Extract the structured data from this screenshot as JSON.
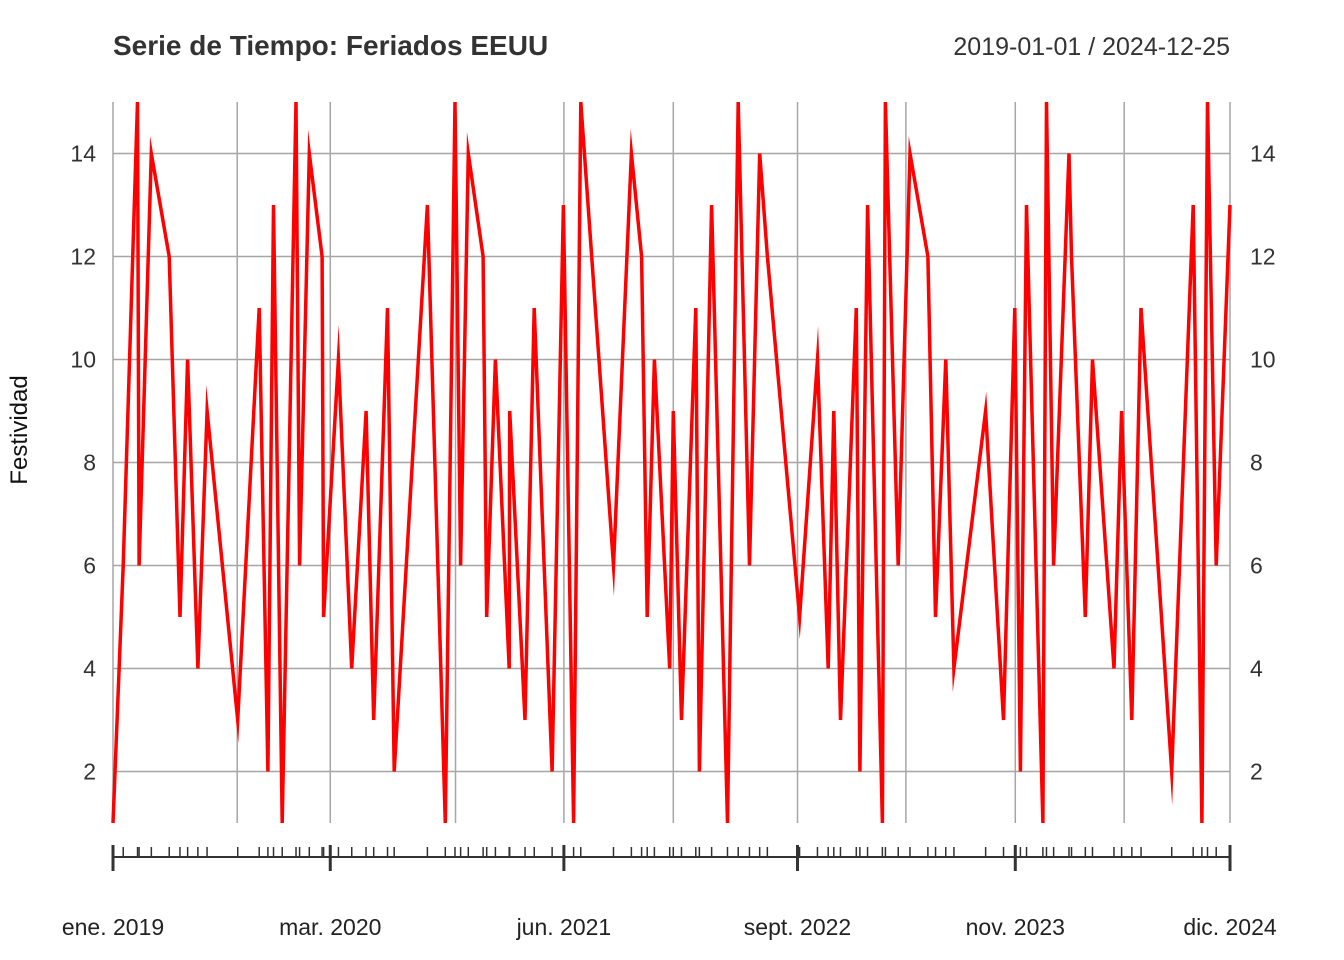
{
  "chart_data": {
    "type": "line",
    "title": "Serie de Tiempo: Feriados EEUU",
    "date_range": "2019-01-01 / 2024-12-25",
    "xlabel": "",
    "ylabel": "Festividad",
    "ylim": [
      1,
      15
    ],
    "xlim": [
      "2019-01-01",
      "2024-12-25"
    ],
    "y_ticks": [
      2,
      4,
      6,
      8,
      10,
      12,
      14
    ],
    "x_tick_labels": [
      {
        "date": "2019-01-01",
        "label": "ene. 2019"
      },
      {
        "date": "2020-03-01",
        "label": "mar. 2020"
      },
      {
        "date": "2021-06-01",
        "label": "jun. 2021"
      },
      {
        "date": "2022-09-01",
        "label": "sept. 2022"
      },
      {
        "date": "2023-11-01",
        "label": "nov. 2023"
      },
      {
        "date": "2024-12-25",
        "label": "dic. 2024"
      }
    ],
    "x_gridlines": [
      "2019-01-01",
      "2019-09-01",
      "2020-03-01",
      "2020-11-01",
      "2021-06-01",
      "2022-01-01",
      "2022-09-01",
      "2023-04-01",
      "2023-11-01",
      "2024-06-01",
      "2024-12-25"
    ],
    "grid": true,
    "series": [
      {
        "color": "#ff0000",
        "x": [
          "2019-01-01",
          "2019-01-21",
          "2019-02-18",
          "2019-02-21",
          "2019-03-17",
          "2019-04-21",
          "2019-05-12",
          "2019-05-27",
          "2019-06-16",
          "2019-07-04",
          "2019-09-02",
          "2019-10-14",
          "2019-10-31",
          "2019-11-11",
          "2019-11-28",
          "2019-12-25",
          "2020-01-01",
          "2020-01-20",
          "2020-02-14",
          "2020-02-17",
          "2020-03-17",
          "2020-04-12",
          "2020-05-10",
          "2020-05-25",
          "2020-06-21",
          "2020-07-04",
          "2020-09-07",
          "2020-10-12",
          "2020-10-31",
          "2020-11-11",
          "2020-11-26",
          "2020-12-25",
          "2021-01-01",
          "2021-01-18",
          "2021-02-14",
          "2021-02-15",
          "2021-03-17",
          "2021-04-04",
          "2021-05-09",
          "2021-05-31",
          "2021-06-20",
          "2021-07-04",
          "2021-09-06",
          "2021-10-11",
          "2021-10-31",
          "2021-11-11",
          "2021-11-25",
          "2021-12-25",
          "2022-01-01",
          "2022-01-17",
          "2022-02-14",
          "2022-02-21",
          "2022-03-17",
          "2022-04-17",
          "2022-05-08",
          "2022-05-30",
          "2022-06-19",
          "2022-07-04",
          "2022-09-05",
          "2022-10-10",
          "2022-10-31",
          "2022-11-11",
          "2022-11-24",
          "2022-12-25",
          "2023-01-01",
          "2023-01-16",
          "2023-02-14",
          "2023-02-20",
          "2023-03-17",
          "2023-04-09",
          "2023-05-14",
          "2023-05-29",
          "2023-06-18",
          "2023-07-04",
          "2023-09-04",
          "2023-10-09",
          "2023-10-31",
          "2023-11-11",
          "2023-11-23",
          "2023-12-25",
          "2024-01-01",
          "2024-01-15",
          "2024-02-14",
          "2024-02-19",
          "2024-03-17",
          "2024-03-31",
          "2024-05-12",
          "2024-05-27",
          "2024-06-16",
          "2024-07-04",
          "2024-09-02",
          "2024-10-14",
          "2024-10-31",
          "2024-11-11",
          "2024-11-28",
          "2024-12-25"
        ],
        "values": [
          1,
          6,
          15,
          6,
          14,
          12,
          5,
          10,
          4,
          9,
          3,
          11,
          2,
          13,
          1,
          15,
          6,
          14,
          12,
          5,
          10,
          4,
          9,
          3,
          11,
          2,
          13,
          1,
          15,
          6,
          14,
          12,
          5,
          10,
          4,
          9,
          3,
          11,
          2,
          13,
          1,
          15,
          6,
          14,
          12,
          5,
          10,
          4,
          9,
          3,
          11,
          2,
          13,
          1,
          15,
          6,
          14,
          12,
          5,
          10,
          4,
          9,
          3,
          11,
          2,
          13,
          1,
          15,
          6,
          14,
          12,
          5,
          10,
          4,
          9,
          3,
          11,
          2,
          13,
          1,
          15,
          6,
          14,
          12,
          5,
          10,
          4,
          9,
          3,
          11,
          2,
          13,
          1,
          15,
          6,
          13
        ]
      }
    ]
  }
}
